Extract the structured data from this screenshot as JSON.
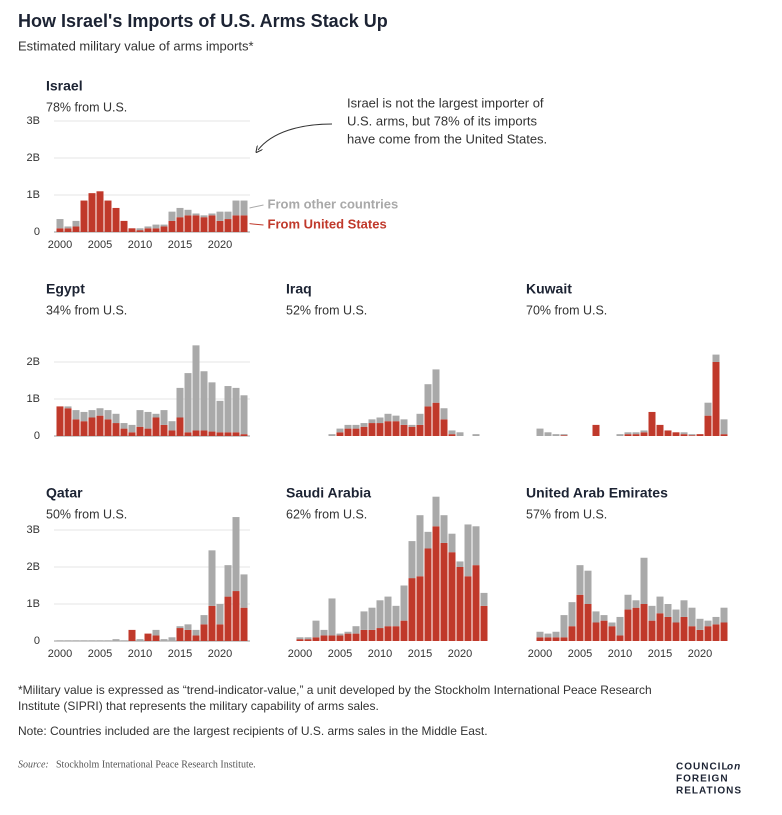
{
  "title": "How Israel's Imports of U.S. Arms Stack Up",
  "subtitle": "Estimated military value of arms imports*",
  "annotation": [
    "Israel is not the largest importer of",
    "U.S. arms, but 78% of its imports",
    "have come from the United States."
  ],
  "footnote": [
    "*Military value is expressed as “trend-indicator-value,” a unit developed by the Stockholm International Peace Research",
    "Institute (SIPRI) that represents the military capability of arms sales."
  ],
  "note": "Note: Countries included are the largest recipients of U.S. arms sales in the Middle East.",
  "source": {
    "label": "Source:",
    "text": "Stockholm International Peace Research Institute."
  },
  "logo": [
    "COUNCIL",
    "on",
    "FOREIGN",
    "RELATIONS"
  ],
  "chart_data": [
    {
      "type": "bar",
      "stacked": true,
      "title": "Israel",
      "subtitle": "78% from U.S.",
      "x": [
        2000,
        2001,
        2002,
        2003,
        2004,
        2005,
        2006,
        2007,
        2008,
        2009,
        2010,
        2011,
        2012,
        2013,
        2014,
        2015,
        2016,
        2017,
        2018,
        2019,
        2020,
        2021,
        2022,
        2023
      ],
      "xlim": [
        1998.5,
        2024.5
      ],
      "xticks": [
        2000,
        2005,
        2010,
        2015,
        2020
      ],
      "ylim": [
        0,
        3
      ],
      "yticks": [
        {
          "value": 0,
          "label": "0"
        },
        {
          "value": 1,
          "label": "1B"
        },
        {
          "value": 2,
          "label": "2B"
        },
        {
          "value": 3,
          "label": "3B"
        }
      ],
      "grid": true,
      "series": [
        {
          "name": "From United States",
          "color": "#c0392b",
          "values": [
            0.1,
            0.1,
            0.15,
            0.85,
            1.05,
            1.1,
            0.85,
            0.65,
            0.3,
            0.1,
            0.05,
            0.1,
            0.1,
            0.15,
            0.3,
            0.4,
            0.45,
            0.45,
            0.4,
            0.45,
            0.3,
            0.35,
            0.45,
            0.45
          ]
        },
        {
          "name": "From other countries",
          "color": "#a9a9a9",
          "values": [
            0.25,
            0.05,
            0.15,
            0,
            0,
            0,
            0,
            0,
            0,
            0,
            0.05,
            0.05,
            0.1,
            0.05,
            0.25,
            0.25,
            0.15,
            0.05,
            0.05,
            0.05,
            0.25,
            0.2,
            0.4,
            0.4
          ]
        }
      ]
    },
    {
      "type": "bar",
      "stacked": true,
      "title": "Egypt",
      "subtitle": "34% from U.S.",
      "x": [
        2000,
        2001,
        2002,
        2003,
        2004,
        2005,
        2006,
        2007,
        2008,
        2009,
        2010,
        2011,
        2012,
        2013,
        2014,
        2015,
        2016,
        2017,
        2018,
        2019,
        2020,
        2021,
        2022,
        2023
      ],
      "xlim": [
        1998.5,
        2024.5
      ],
      "ylim": [
        0,
        3
      ],
      "yticks": [
        {
          "value": 0,
          "label": "0"
        },
        {
          "value": 1,
          "label": "1B"
        },
        {
          "value": 2,
          "label": "2B"
        }
      ],
      "grid": true,
      "series": [
        {
          "color": "#c0392b",
          "values": [
            0.8,
            0.75,
            0.45,
            0.4,
            0.5,
            0.55,
            0.45,
            0.35,
            0.2,
            0.1,
            0.25,
            0.2,
            0.5,
            0.3,
            0.15,
            0.5,
            0.1,
            0.15,
            0.15,
            0.12,
            0.1,
            0.1,
            0.1,
            0.05
          ]
        },
        {
          "color": "#a9a9a9",
          "values": [
            0,
            0.05,
            0.25,
            0.25,
            0.2,
            0.2,
            0.25,
            0.25,
            0.15,
            0.2,
            0.45,
            0.45,
            0.1,
            0.4,
            0.25,
            0.8,
            1.6,
            2.3,
            1.6,
            1.33,
            0.85,
            1.25,
            1.2,
            1.05
          ]
        }
      ]
    },
    {
      "type": "bar",
      "stacked": true,
      "title": "Iraq",
      "subtitle": "52% from U.S.",
      "x": [
        2000,
        2001,
        2002,
        2003,
        2004,
        2005,
        2006,
        2007,
        2008,
        2009,
        2010,
        2011,
        2012,
        2013,
        2014,
        2015,
        2016,
        2017,
        2018,
        2019,
        2020,
        2021,
        2022,
        2023
      ],
      "xlim": [
        1998.5,
        2024.5
      ],
      "ylim": [
        0,
        3
      ],
      "series": [
        {
          "color": "#c0392b",
          "values": [
            0,
            0,
            0,
            0,
            0,
            0.1,
            0.2,
            0.2,
            0.25,
            0.35,
            0.35,
            0.4,
            0.4,
            0.3,
            0.25,
            0.3,
            0.8,
            0.9,
            0.45,
            0.05,
            0,
            0,
            0,
            0
          ]
        },
        {
          "color": "#a9a9a9",
          "values": [
            0,
            0,
            0,
            0,
            0.05,
            0.1,
            0.1,
            0.1,
            0.1,
            0.1,
            0.15,
            0.2,
            0.15,
            0.15,
            0.05,
            0.3,
            0.6,
            0.9,
            0.3,
            0.1,
            0.1,
            0,
            0.05,
            0
          ]
        }
      ]
    },
    {
      "type": "bar",
      "stacked": true,
      "title": "Kuwait",
      "subtitle": "70% from U.S.",
      "x": [
        2000,
        2001,
        2002,
        2003,
        2004,
        2005,
        2006,
        2007,
        2008,
        2009,
        2010,
        2011,
        2012,
        2013,
        2014,
        2015,
        2016,
        2017,
        2018,
        2019,
        2020,
        2021,
        2022,
        2023
      ],
      "xlim": [
        1998.5,
        2024.5
      ],
      "ylim": [
        0,
        3
      ],
      "series": [
        {
          "color": "#c0392b",
          "values": [
            0,
            0,
            0,
            0.02,
            0,
            0,
            0,
            0.3,
            0,
            0,
            0,
            0.05,
            0.05,
            0.1,
            0.65,
            0.3,
            0.15,
            0.1,
            0.05,
            0.02,
            0.05,
            0.55,
            2.0,
            0.05
          ]
        },
        {
          "color": "#a9a9a9",
          "values": [
            0.2,
            0.1,
            0.05,
            0.03,
            0,
            0,
            0,
            0,
            0,
            0,
            0.05,
            0.05,
            0.05,
            0.05,
            0,
            0,
            0,
            0,
            0.05,
            0.03,
            0,
            0.35,
            0.2,
            0.4
          ]
        }
      ]
    },
    {
      "type": "bar",
      "stacked": true,
      "title": "Qatar",
      "subtitle": "50% from U.S.",
      "x": [
        2000,
        2001,
        2002,
        2003,
        2004,
        2005,
        2006,
        2007,
        2008,
        2009,
        2010,
        2011,
        2012,
        2013,
        2014,
        2015,
        2016,
        2017,
        2018,
        2019,
        2020,
        2021,
        2022,
        2023
      ],
      "xlim": [
        1998.5,
        2024.5
      ],
      "xticks": [
        2000,
        2005,
        2010,
        2015,
        2020
      ],
      "ylim": [
        0,
        4
      ],
      "yticks": [
        {
          "value": 0,
          "label": "0"
        },
        {
          "value": 1,
          "label": "1B"
        },
        {
          "value": 2,
          "label": "2B"
        },
        {
          "value": 3,
          "label": "3B"
        }
      ],
      "grid": true,
      "series": [
        {
          "color": "#c0392b",
          "values": [
            0,
            0,
            0,
            0,
            0,
            0,
            0,
            0,
            0,
            0.3,
            0,
            0.2,
            0.15,
            0,
            0,
            0.35,
            0.3,
            0.15,
            0.45,
            0.95,
            0.45,
            1.2,
            1.35,
            0.9
          ]
        },
        {
          "color": "#a9a9a9",
          "values": [
            0.02,
            0.02,
            0.02,
            0.02,
            0.02,
            0.02,
            0.02,
            0.05,
            0.02,
            0,
            0.05,
            0,
            0.15,
            0.05,
            0.1,
            0.05,
            0.15,
            0.15,
            0.25,
            1.5,
            0.55,
            0.85,
            2.0,
            0.9
          ]
        }
      ]
    },
    {
      "type": "bar",
      "stacked": true,
      "title": "Saudi Arabia",
      "subtitle": "62% from U.S.",
      "x": [
        2000,
        2001,
        2002,
        2003,
        2004,
        2005,
        2006,
        2007,
        2008,
        2009,
        2010,
        2011,
        2012,
        2013,
        2014,
        2015,
        2016,
        2017,
        2018,
        2019,
        2020,
        2021,
        2022,
        2023
      ],
      "xlim": [
        1998.5,
        2024.5
      ],
      "xticks": [
        2000,
        2005,
        2010,
        2015,
        2020
      ],
      "ylim": [
        0,
        4
      ],
      "series": [
        {
          "color": "#c0392b",
          "values": [
            0.05,
            0.05,
            0.1,
            0.15,
            0.15,
            0.15,
            0.2,
            0.2,
            0.3,
            0.3,
            0.35,
            0.4,
            0.4,
            0.55,
            1.7,
            1.75,
            2.5,
            3.1,
            2.65,
            2.4,
            2.0,
            1.75,
            2.05,
            0.95
          ]
        },
        {
          "color": "#a9a9a9",
          "values": [
            0.05,
            0.05,
            0.45,
            0.15,
            1.0,
            0.05,
            0.05,
            0.2,
            0.5,
            0.6,
            0.75,
            0.8,
            0.55,
            0.95,
            1.0,
            1.65,
            0.45,
            0.8,
            0.75,
            0.5,
            0.15,
            1.4,
            1.05,
            0.35
          ]
        }
      ]
    },
    {
      "type": "bar",
      "stacked": true,
      "title": "United Arab Emirates",
      "subtitle": "57% from U.S.",
      "x": [
        2000,
        2001,
        2002,
        2003,
        2004,
        2005,
        2006,
        2007,
        2008,
        2009,
        2010,
        2011,
        2012,
        2013,
        2014,
        2015,
        2016,
        2017,
        2018,
        2019,
        2020,
        2021,
        2022,
        2023
      ],
      "xlim": [
        1998.5,
        2024.5
      ],
      "xticks": [
        2000,
        2005,
        2010,
        2015,
        2020
      ],
      "ylim": [
        0,
        4
      ],
      "series": [
        {
          "color": "#c0392b",
          "values": [
            0.1,
            0.1,
            0.1,
            0.1,
            0.4,
            1.25,
            1.0,
            0.5,
            0.55,
            0.4,
            0.15,
            0.85,
            0.9,
            1.0,
            0.55,
            0.75,
            0.65,
            0.5,
            0.65,
            0.4,
            0.3,
            0.4,
            0.45,
            0.5
          ]
        },
        {
          "color": "#a9a9a9",
          "values": [
            0.15,
            0.1,
            0.15,
            0.6,
            0.65,
            0.8,
            0.9,
            0.3,
            0.15,
            0.1,
            0.5,
            0.4,
            0.2,
            1.25,
            0.4,
            0.45,
            0.35,
            0.35,
            0.45,
            0.5,
            0.3,
            0.15,
            0.2,
            0.4
          ]
        }
      ]
    }
  ]
}
